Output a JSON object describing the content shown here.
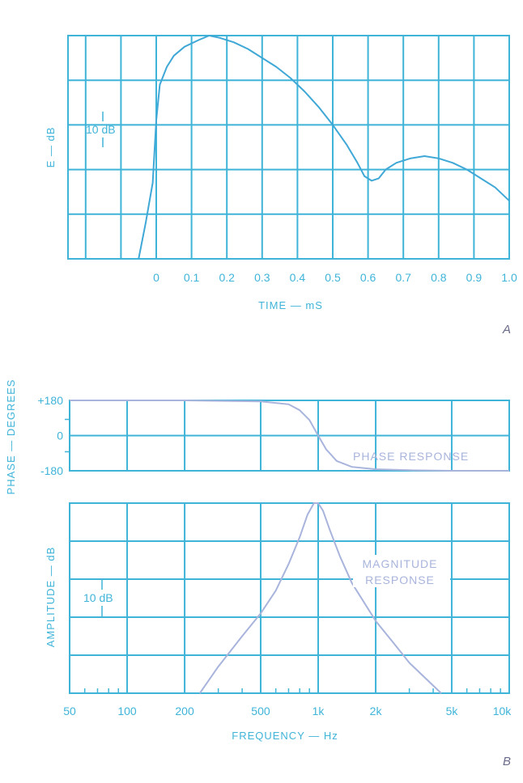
{
  "colors": {
    "grid": "#3fb4d8",
    "text": "#3fb4d8",
    "energy_curve": "#3fa8d6",
    "freq_curves": "#a8b4dc",
    "panel_letter": "#6a6a8a"
  },
  "chart_data": [
    {
      "type": "line",
      "panel_label": "A",
      "xlabel": "TIME — mS",
      "ylabel": "E — dB",
      "xticks": [
        "0",
        "0.1",
        "0.2",
        "0.3",
        "0.4",
        "0.5",
        "0.6",
        "0.7",
        "0.8",
        "0.9",
        "1.0"
      ],
      "xlim": [
        -0.25,
        1.0
      ],
      "ylim": [
        -50,
        0
      ],
      "scale_annotation": "10 dB",
      "grid": true,
      "series": [
        {
          "x": [
            -0.05,
            -0.03,
            -0.01,
            0,
            0.01,
            0.03,
            0.05,
            0.08,
            0.12,
            0.15,
            0.18,
            0.22,
            0.26,
            0.3,
            0.34,
            0.38,
            0.42,
            0.46,
            0.5,
            0.54,
            0.57,
            0.59,
            0.61,
            0.63,
            0.65,
            0.68,
            0.72,
            0.76,
            0.8,
            0.84,
            0.88,
            0.92,
            0.96,
            1.0
          ],
          "y": [
            -50,
            -42,
            -33,
            -19,
            -11,
            -7,
            -4.5,
            -2.5,
            -1,
            0,
            -0.5,
            -1.5,
            -3,
            -5,
            -7,
            -9.5,
            -12.5,
            -16,
            -20,
            -24.5,
            -28.5,
            -31.5,
            -32.5,
            -32,
            -30,
            -28.5,
            -27.5,
            -27,
            -27.5,
            -28.5,
            -30,
            -32,
            -34,
            -37
          ]
        }
      ]
    },
    {
      "type": "line",
      "panel_label": "B",
      "xlabel": "FREQUENCY — Hz",
      "xscale": "log",
      "xticks": [
        "50",
        "100",
        "200",
        "500",
        "1k",
        "2k",
        "5k",
        "10k"
      ],
      "xlim": [
        50,
        10000
      ],
      "grid": true,
      "subplots": [
        {
          "ylabel": "PHASE — DEGREES",
          "yticks": [
            "+180",
            "0",
            "-180"
          ],
          "ylim": [
            -180,
            180
          ],
          "annotation": "PHASE RESPONSE",
          "series": [
            {
              "x": [
                50,
                200,
                500,
                700,
                800,
                900,
                1000,
                1100,
                1250,
                1500,
                2000,
                3000,
                5000,
                10000
              ],
              "y": [
                180,
                180,
                175,
                160,
                130,
                80,
                0,
                -70,
                -130,
                -160,
                -172,
                -177,
                -180,
                -180
              ]
            }
          ]
        },
        {
          "ylabel": "AMPLITUDE — dB",
          "ylim": [
            -50,
            0
          ],
          "scale_annotation": "10 dB",
          "annotation": "MAGNITUDE RESPONSE",
          "series": [
            {
              "x": [
                240,
                300,
                400,
                500,
                600,
                700,
                800,
                880,
                950,
                1000,
                1060,
                1150,
                1300,
                1500,
                2000,
                2500,
                3000,
                4000,
                4400
              ],
              "y": [
                -50,
                -43,
                -35,
                -29,
                -23,
                -16,
                -9,
                -3,
                0,
                0,
                -2,
                -7,
                -14,
                -21,
                -31,
                -37,
                -42,
                -48,
                -50
              ]
            }
          ]
        }
      ]
    }
  ]
}
